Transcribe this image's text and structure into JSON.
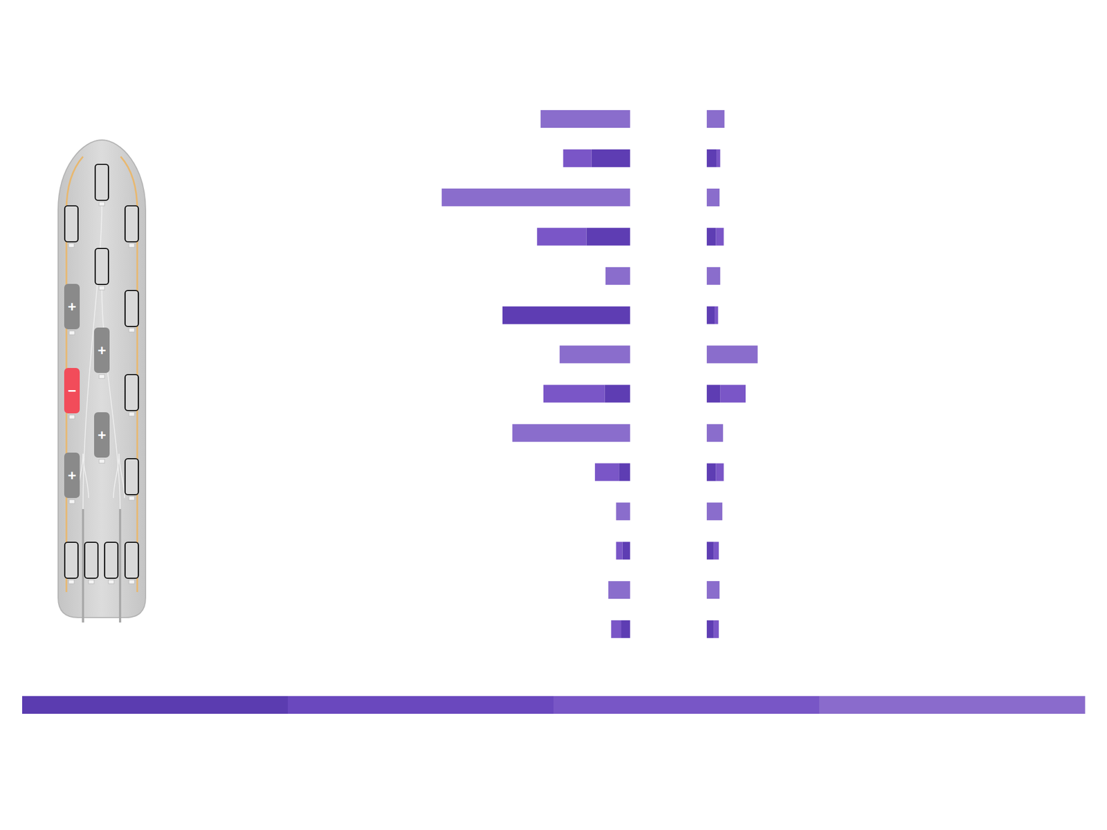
{
  "chart_data": [
    {
      "type": "bar",
      "orientation": "horizontal",
      "stacked": true,
      "tick_labels": false,
      "categories": [
        null,
        null,
        null,
        null,
        null,
        null,
        null,
        null,
        null,
        null,
        null,
        null,
        null,
        null
      ],
      "xlim": [
        0,
        300
      ],
      "series": [
        {
          "color": "#5e3db3",
          "values": [
            null,
            55,
            null,
            62,
            null,
            181,
            null,
            36,
            null,
            16,
            null,
            11,
            null,
            13
          ]
        },
        {
          "color": "#7a56c7",
          "values": [
            null,
            40,
            null,
            70,
            null,
            null,
            null,
            87,
            null,
            34,
            null,
            9,
            null,
            14
          ]
        },
        {
          "color": "#8a6dcc",
          "values": [
            127,
            null,
            267,
            null,
            35,
            null,
            100,
            null,
            167,
            null,
            20,
            null,
            31,
            null
          ]
        }
      ]
    },
    {
      "type": "bar",
      "orientation": "horizontal",
      "stacked": true,
      "tick_labels": false,
      "categories": [
        null,
        null,
        null,
        null,
        null,
        null,
        null,
        null,
        null,
        null,
        null,
        null,
        null,
        null
      ],
      "xlim": [
        0,
        300
      ],
      "series": [
        {
          "color": "#5e3db3",
          "values": [
            null,
            14,
            null,
            13,
            null,
            11,
            null,
            19,
            null,
            13,
            null,
            10,
            null,
            10
          ]
        },
        {
          "color": "#7a56c7",
          "values": [
            null,
            5,
            null,
            11,
            null,
            5,
            null,
            36,
            null,
            11,
            null,
            7,
            null,
            7
          ]
        },
        {
          "color": "#8a6dcc",
          "values": [
            25,
            null,
            18,
            null,
            19,
            null,
            72,
            null,
            23,
            null,
            22,
            null,
            18,
            null
          ]
        }
      ]
    }
  ],
  "diagram": {
    "signs": [
      "+",
      "+",
      "−",
      "+",
      "+"
    ]
  },
  "color_bar": {
    "colors": [
      "#5b3cb0",
      "#6a48be",
      "#7856c6",
      "#8a6bcc"
    ]
  }
}
